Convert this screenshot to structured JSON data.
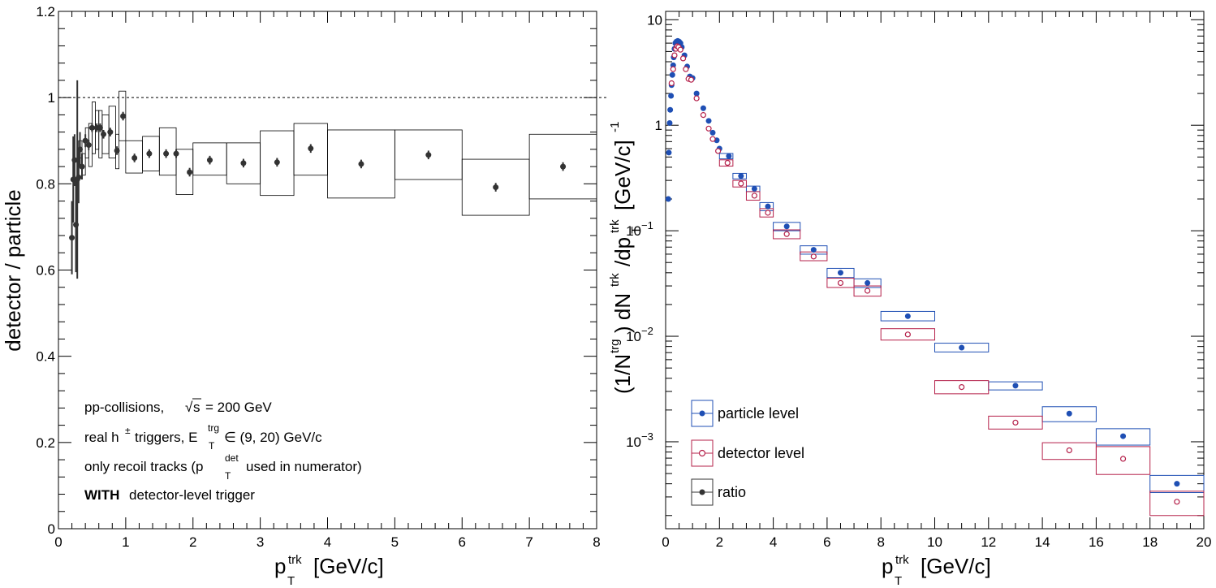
{
  "chart_data": [
    {
      "type": "scatter",
      "panel": "left",
      "ylabel": "detector / particle",
      "xlabel_base": "p",
      "xlabel_sub": "T",
      "xlabel_sup": "trk",
      "xlabel_unit": "[GeV/c]",
      "xlim": [
        0,
        8
      ],
      "ylim": [
        0,
        1.2
      ],
      "x_ticks": [
        0,
        1,
        2,
        3,
        4,
        5,
        6,
        7,
        8
      ],
      "y_ticks": [
        0,
        0.2,
        0.4,
        0.6,
        0.8,
        1,
        1.2
      ],
      "x_tick_labels": [
        "0",
        "1",
        "2",
        "3",
        "4",
        "5",
        "6",
        "7",
        "8"
      ],
      "y_tick_labels": [
        "0",
        "0.2",
        "0.4",
        "0.6",
        "0.8",
        "1",
        "1.2"
      ],
      "reference_line": 1,
      "annotations": {
        "line1_a": "pp-collisions,",
        "line1_b": "s",
        "line1_c": "= 200 GeV",
        "line2_a": "real h",
        "line2_sup": "±",
        "line2_b": "triggers, E",
        "line2_sub": "T",
        "line2_sup2": "trg",
        "line2_c": "∈ (9, 20) GeV/c",
        "line3_a": "only recoil tracks (p",
        "line3_sub": "T",
        "line3_sup": "det",
        "line3_b": "used in numerator)",
        "line4_bold": "WITH",
        "line4_rest": "detector-level trigger"
      },
      "series": [
        {
          "marker": "filled-circle",
          "color": "#333333",
          "points": [
            {
              "x": 0.2,
              "y": 0.675,
              "err": 0.085,
              "xlo": 0.2,
              "xhi": 0.2,
              "slo": 0.675,
              "shi": 0.675
            },
            {
              "x": 0.22,
              "y": 0.81,
              "err": 0.1,
              "xlo": 0.22,
              "xhi": 0.22,
              "slo": 0.81,
              "shi": 0.81
            },
            {
              "x": 0.24,
              "y": 0.855,
              "err": 0.06,
              "xlo": 0.24,
              "xhi": 0.24,
              "slo": 0.855,
              "shi": 0.855
            },
            {
              "x": 0.26,
              "y": 0.705,
              "err": 0.11,
              "xlo": 0.26,
              "xhi": 0.26,
              "slo": 0.705,
              "shi": 0.705
            },
            {
              "x": 0.28,
              "y": 0.81,
              "err": 0.23,
              "xlo": 0.28,
              "xhi": 0.28,
              "slo": 0.81,
              "shi": 0.81
            },
            {
              "x": 0.3,
              "y": 0.815,
              "err": 0.06,
              "xlo": 0.3,
              "xhi": 0.3,
              "slo": 0.815,
              "shi": 0.815
            },
            {
              "x": 0.32,
              "y": 0.88,
              "err": 0.04,
              "xlo": 0.3,
              "xhi": 0.35,
              "slo": 0.86,
              "shi": 0.9
            },
            {
              "x": 0.35,
              "y": 0.84,
              "err": 0.03,
              "xlo": 0.35,
              "xhi": 0.4,
              "slo": 0.82,
              "shi": 0.87
            },
            {
              "x": 0.4,
              "y": 0.9,
              "err": 0.015,
              "xlo": 0.4,
              "xhi": 0.45,
              "slo": 0.86,
              "shi": 0.93
            },
            {
              "x": 0.45,
              "y": 0.89,
              "err": 0.012,
              "xlo": 0.45,
              "xhi": 0.5,
              "slo": 0.84,
              "shi": 0.94
            },
            {
              "x": 0.5,
              "y": 0.93,
              "err": 0.01,
              "xlo": 0.5,
              "xhi": 0.55,
              "slo": 0.87,
              "shi": 0.99
            },
            {
              "x": 0.57,
              "y": 0.93,
              "err": 0.01,
              "xlo": 0.55,
              "xhi": 0.6,
              "slo": 0.88,
              "shi": 0.97
            },
            {
              "x": 0.62,
              "y": 0.93,
              "err": 0.01,
              "xlo": 0.6,
              "xhi": 0.65,
              "slo": 0.86,
              "shi": 0.97
            },
            {
              "x": 0.67,
              "y": 0.915,
              "err": 0.01,
              "xlo": 0.65,
              "xhi": 0.75,
              "slo": 0.87,
              "shi": 0.96
            },
            {
              "x": 0.77,
              "y": 0.92,
              "err": 0.01,
              "xlo": 0.75,
              "xhi": 0.85,
              "slo": 0.86,
              "shi": 0.98
            },
            {
              "x": 0.87,
              "y": 0.877,
              "err": 0.01,
              "xlo": 0.85,
              "xhi": 0.9,
              "slo": 0.835,
              "shi": 0.915
            },
            {
              "x": 0.96,
              "y": 0.957,
              "err": 0.01,
              "xlo": 0.9,
              "xhi": 1.0,
              "slo": 0.9,
              "shi": 1.015
            },
            {
              "x": 1.13,
              "y": 0.86,
              "err": 0.01,
              "xlo": 1.0,
              "xhi": 1.25,
              "slo": 0.825,
              "shi": 0.9
            },
            {
              "x": 1.35,
              "y": 0.87,
              "err": 0.01,
              "xlo": 1.25,
              "xhi": 1.5,
              "slo": 0.83,
              "shi": 0.91
            },
            {
              "x": 1.6,
              "y": 0.87,
              "err": 0.01,
              "xlo": 1.5,
              "xhi": 1.75,
              "slo": 0.82,
              "shi": 0.93
            },
            {
              "x": 1.75,
              "y": 0.87,
              "err": 0.01,
              "xlo": 1.75,
              "xhi": 1.75,
              "slo": 0.87,
              "shi": 0.87
            },
            {
              "x": 1.95,
              "y": 0.827,
              "err": 0.01,
              "xlo": 1.75,
              "xhi": 2.0,
              "slo": 0.775,
              "shi": 0.88
            },
            {
              "x": 2.25,
              "y": 0.855,
              "err": 0.01,
              "xlo": 2.0,
              "xhi": 2.5,
              "slo": 0.82,
              "shi": 0.895
            },
            {
              "x": 2.75,
              "y": 0.848,
              "err": 0.01,
              "xlo": 2.5,
              "xhi": 3.0,
              "slo": 0.8,
              "shi": 0.895
            },
            {
              "x": 3.25,
              "y": 0.85,
              "err": 0.01,
              "xlo": 3.0,
              "xhi": 3.5,
              "slo": 0.773,
              "shi": 0.923
            },
            {
              "x": 3.75,
              "y": 0.882,
              "err": 0.01,
              "xlo": 3.5,
              "xhi": 4.0,
              "slo": 0.82,
              "shi": 0.94
            },
            {
              "x": 4.5,
              "y": 0.846,
              "err": 0.01,
              "xlo": 4.0,
              "xhi": 5.0,
              "slo": 0.767,
              "shi": 0.925
            },
            {
              "x": 5.5,
              "y": 0.867,
              "err": 0.01,
              "xlo": 5.0,
              "xhi": 6.0,
              "slo": 0.81,
              "shi": 0.925
            },
            {
              "x": 6.5,
              "y": 0.792,
              "err": 0.01,
              "xlo": 6.0,
              "xhi": 7.0,
              "slo": 0.727,
              "shi": 0.857
            },
            {
              "x": 7.5,
              "y": 0.84,
              "err": 0.01,
              "xlo": 7.0,
              "xhi": 8.0,
              "slo": 0.765,
              "shi": 0.915
            }
          ]
        }
      ]
    },
    {
      "type": "scatter",
      "panel": "right",
      "ylabel_parts": {
        "a": "(1/N",
        "a_sup": "trg",
        "b": ") dN",
        "b_sup": "trk",
        "c": "/dp",
        "c_sub": "T",
        "c_sup": "trk",
        "d": "[GeV/c]",
        "d_sup": "-1"
      },
      "xlabel_base": "p",
      "xlabel_sub": "T",
      "xlabel_sup": "trk",
      "xlabel_unit": "[GeV/c]",
      "xlim": [
        0,
        20
      ],
      "ylim": [
        0.00015,
        12
      ],
      "yscale": "log",
      "x_ticks": [
        0,
        2,
        4,
        6,
        8,
        10,
        12,
        14,
        16,
        18,
        20
      ],
      "x_tick_labels": [
        "0",
        "2",
        "4",
        "6",
        "8",
        "10",
        "12",
        "14",
        "16",
        "18",
        "20"
      ],
      "y_tick_labels": [
        {
          "v": 10,
          "base": "10",
          "exp": ""
        },
        {
          "v": 1,
          "base": "1",
          "exp": ""
        },
        {
          "v": 0.1,
          "base": "10",
          "exp": "−1"
        },
        {
          "v": 0.01,
          "base": "10",
          "exp": "−2"
        },
        {
          "v": 0.001,
          "base": "10",
          "exp": "−3"
        }
      ],
      "legend": {
        "placement": "bottom-left",
        "entries": [
          "particle level",
          "detector level",
          "ratio"
        ]
      },
      "series": [
        {
          "name": "particle level",
          "marker": "filled-circle",
          "color": "#1f4fb4",
          "points": [
            {
              "x": 0.1,
              "y": 0.2
            },
            {
              "x": 0.12,
              "y": 0.55
            },
            {
              "x": 0.15,
              "y": 1.05
            },
            {
              "x": 0.17,
              "y": 1.4
            },
            {
              "x": 0.2,
              "y": 1.9
            },
            {
              "x": 0.22,
              "y": 2.4
            },
            {
              "x": 0.25,
              "y": 3.0
            },
            {
              "x": 0.28,
              "y": 3.7
            },
            {
              "x": 0.3,
              "y": 4.4
            },
            {
              "x": 0.33,
              "y": 5.3
            },
            {
              "x": 0.36,
              "y": 6.0
            },
            {
              "x": 0.4,
              "y": 6.2
            },
            {
              "x": 0.45,
              "y": 6.3
            },
            {
              "x": 0.5,
              "y": 6.2
            },
            {
              "x": 0.55,
              "y": 6.0
            },
            {
              "x": 0.6,
              "y": 5.5
            },
            {
              "x": 0.7,
              "y": 4.6
            },
            {
              "x": 0.8,
              "y": 3.6
            },
            {
              "x": 0.9,
              "y": 2.9
            },
            {
              "x": 1.0,
              "y": 2.8
            },
            {
              "x": 1.15,
              "y": 2.0
            },
            {
              "x": 1.4,
              "y": 1.45
            },
            {
              "x": 1.6,
              "y": 1.1
            },
            {
              "x": 1.75,
              "y": 0.85
            },
            {
              "x": 1.9,
              "y": 0.72
            },
            {
              "x": 2.0,
              "y": 0.6
            },
            {
              "x": 2.35,
              "y": 0.51,
              "xlo": 2.0,
              "xhi": 2.5,
              "slo": 0.48,
              "shi": 0.54
            },
            {
              "x": 2.8,
              "y": 0.33,
              "xlo": 2.5,
              "xhi": 3.0,
              "slo": 0.31,
              "shi": 0.35
            },
            {
              "x": 3.3,
              "y": 0.25,
              "xlo": 3.0,
              "xhi": 3.5,
              "slo": 0.235,
              "shi": 0.265
            },
            {
              "x": 3.8,
              "y": 0.17,
              "xlo": 3.5,
              "xhi": 4.0,
              "slo": 0.155,
              "shi": 0.185
            },
            {
              "x": 4.5,
              "y": 0.11,
              "xlo": 4.0,
              "xhi": 5.0,
              "slo": 0.1,
              "shi": 0.12
            },
            {
              "x": 5.5,
              "y": 0.066,
              "xlo": 5.0,
              "xhi": 6.0,
              "slo": 0.06,
              "shi": 0.072
            },
            {
              "x": 6.5,
              "y": 0.04,
              "xlo": 6.0,
              "xhi": 7.0,
              "slo": 0.036,
              "shi": 0.044
            },
            {
              "x": 7.5,
              "y": 0.032,
              "xlo": 7.0,
              "xhi": 8.0,
              "slo": 0.029,
              "shi": 0.035
            },
            {
              "x": 9.0,
              "y": 0.0155,
              "xlo": 8.0,
              "xhi": 10.0,
              "slo": 0.014,
              "shi": 0.0172
            },
            {
              "x": 11.0,
              "y": 0.0078,
              "xlo": 10.0,
              "xhi": 12.0,
              "slo": 0.0071,
              "shi": 0.0086
            },
            {
              "x": 13.0,
              "y": 0.0034,
              "xlo": 12.0,
              "xhi": 14.0,
              "slo": 0.0031,
              "shi": 0.0037
            },
            {
              "x": 15.0,
              "y": 0.00185,
              "xlo": 14.0,
              "xhi": 16.0,
              "slo": 0.00155,
              "shi": 0.00215
            },
            {
              "x": 17.0,
              "y": 0.00113,
              "xlo": 16.0,
              "xhi": 18.0,
              "slo": 0.00093,
              "shi": 0.00133
            },
            {
              "x": 19.0,
              "y": 0.0004,
              "xlo": 18.0,
              "xhi": 20.0,
              "slo": 0.00033,
              "shi": 0.00048
            }
          ]
        },
        {
          "name": "detector level",
          "marker": "open-circle",
          "color": "#b5204a",
          "points": [
            {
              "x": 0.22,
              "y": 2.5
            },
            {
              "x": 0.28,
              "y": 3.4
            },
            {
              "x": 0.33,
              "y": 4.6
            },
            {
              "x": 0.38,
              "y": 5.3
            },
            {
              "x": 0.43,
              "y": 5.6
            },
            {
              "x": 0.48,
              "y": 5.5
            },
            {
              "x": 0.55,
              "y": 5.2
            },
            {
              "x": 0.65,
              "y": 4.3
            },
            {
              "x": 0.75,
              "y": 3.4
            },
            {
              "x": 0.85,
              "y": 2.75
            },
            {
              "x": 0.95,
              "y": 2.7
            },
            {
              "x": 1.15,
              "y": 1.8
            },
            {
              "x": 1.4,
              "y": 1.25
            },
            {
              "x": 1.6,
              "y": 0.93
            },
            {
              "x": 1.75,
              "y": 0.74
            },
            {
              "x": 1.95,
              "y": 0.57
            },
            {
              "x": 2.3,
              "y": 0.44,
              "xlo": 2.0,
              "xhi": 2.5,
              "slo": 0.41,
              "shi": 0.47
            },
            {
              "x": 2.8,
              "y": 0.28,
              "xlo": 2.5,
              "xhi": 3.0,
              "slo": 0.26,
              "shi": 0.3
            },
            {
              "x": 3.3,
              "y": 0.215,
              "xlo": 3.0,
              "xhi": 3.5,
              "slo": 0.195,
              "shi": 0.235
            },
            {
              "x": 3.8,
              "y": 0.148,
              "xlo": 3.5,
              "xhi": 4.0,
              "slo": 0.135,
              "shi": 0.162
            },
            {
              "x": 4.5,
              "y": 0.093,
              "xlo": 4.0,
              "xhi": 5.0,
              "slo": 0.084,
              "shi": 0.102
            },
            {
              "x": 5.5,
              "y": 0.057,
              "xlo": 5.0,
              "xhi": 6.0,
              "slo": 0.052,
              "shi": 0.063
            },
            {
              "x": 6.5,
              "y": 0.032,
              "xlo": 6.0,
              "xhi": 7.0,
              "slo": 0.029,
              "shi": 0.0355
            },
            {
              "x": 7.5,
              "y": 0.027,
              "xlo": 7.0,
              "xhi": 8.0,
              "slo": 0.024,
              "shi": 0.03
            },
            {
              "x": 9.0,
              "y": 0.0104,
              "xlo": 8.0,
              "xhi": 10.0,
              "slo": 0.0092,
              "shi": 0.0118
            },
            {
              "x": 11.0,
              "y": 0.0033,
              "xlo": 10.0,
              "xhi": 12.0,
              "slo": 0.00285,
              "shi": 0.0038
            },
            {
              "x": 13.0,
              "y": 0.00152,
              "xlo": 12.0,
              "xhi": 14.0,
              "slo": 0.00132,
              "shi": 0.00175
            },
            {
              "x": 15.0,
              "y": 0.00083,
              "xlo": 14.0,
              "xhi": 16.0,
              "slo": 0.00068,
              "shi": 0.00098
            },
            {
              "x": 17.0,
              "y": 0.00069,
              "xlo": 16.0,
              "xhi": 18.0,
              "slo": 0.00049,
              "shi": 0.0009
            },
            {
              "x": 19.0,
              "y": 0.00027,
              "xlo": 18.0,
              "xhi": 20.0,
              "slo": 0.0002,
              "shi": 0.00034
            }
          ]
        }
      ]
    }
  ]
}
